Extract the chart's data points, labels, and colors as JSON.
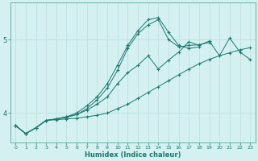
{
  "xlabel": "Humidex (Indice chaleur)",
  "bg_color": "#d4f0f0",
  "line_color": "#1a7a6e",
  "grid_color": "#b8dede",
  "xlim": [
    -0.5,
    23.5
  ],
  "ylim": [
    3.6,
    5.5
  ],
  "yticks": [
    4,
    5
  ],
  "x": [
    0,
    1,
    2,
    3,
    4,
    5,
    6,
    7,
    8,
    9,
    10,
    11,
    12,
    13,
    14,
    15,
    16,
    17,
    18,
    19,
    20,
    21,
    22,
    23
  ],
  "lines": [
    {
      "x": [
        0,
        1,
        2,
        3,
        4,
        5,
        6,
        7,
        8,
        9,
        10,
        11,
        12,
        13,
        14,
        15,
        16,
        17,
        18,
        19,
        20,
        21,
        22,
        23
      ],
      "y": [
        3.83,
        3.72,
        3.8,
        3.9,
        3.91,
        3.92,
        3.93,
        3.95,
        3.97,
        4.0,
        4.06,
        4.12,
        4.2,
        4.28,
        4.36,
        4.44,
        4.52,
        4.6,
        4.67,
        4.73,
        4.78,
        4.82,
        4.86,
        4.89
      ]
    },
    {
      "x": [
        0,
        1,
        2,
        3,
        4,
        5,
        6,
        7,
        8,
        9,
        10,
        11,
        12,
        13,
        14,
        15,
        16,
        17,
        18,
        19,
        20,
        21,
        22,
        23
      ],
      "y": [
        3.83,
        3.72,
        3.8,
        3.9,
        3.92,
        3.95,
        3.98,
        4.04,
        4.12,
        4.22,
        4.4,
        4.55,
        4.65,
        4.78,
        4.6,
        4.72,
        4.83,
        4.97,
        4.92,
        4.98,
        4.78,
        5.02,
        4.83,
        4.73
      ]
    },
    {
      "x": [
        0,
        1,
        2,
        3,
        4,
        5,
        6,
        7,
        8,
        9,
        10,
        11,
        12,
        13,
        14,
        15,
        16,
        17,
        18,
        19
      ],
      "y": [
        3.83,
        3.72,
        3.8,
        3.9,
        3.92,
        3.94,
        3.98,
        4.06,
        4.18,
        4.34,
        4.58,
        4.88,
        5.08,
        5.2,
        5.27,
        5.0,
        4.9,
        4.92,
        4.93,
        4.96
      ]
    },
    {
      "x": [
        0,
        1,
        2,
        3,
        4,
        5,
        6,
        7,
        8,
        9,
        10,
        11,
        12,
        13,
        14,
        15,
        16,
        17,
        18
      ],
      "y": [
        3.83,
        3.72,
        3.8,
        3.9,
        3.92,
        3.95,
        4.0,
        4.1,
        4.22,
        4.4,
        4.65,
        4.92,
        5.12,
        5.27,
        5.3,
        5.1,
        4.92,
        4.88,
        4.9
      ]
    }
  ]
}
